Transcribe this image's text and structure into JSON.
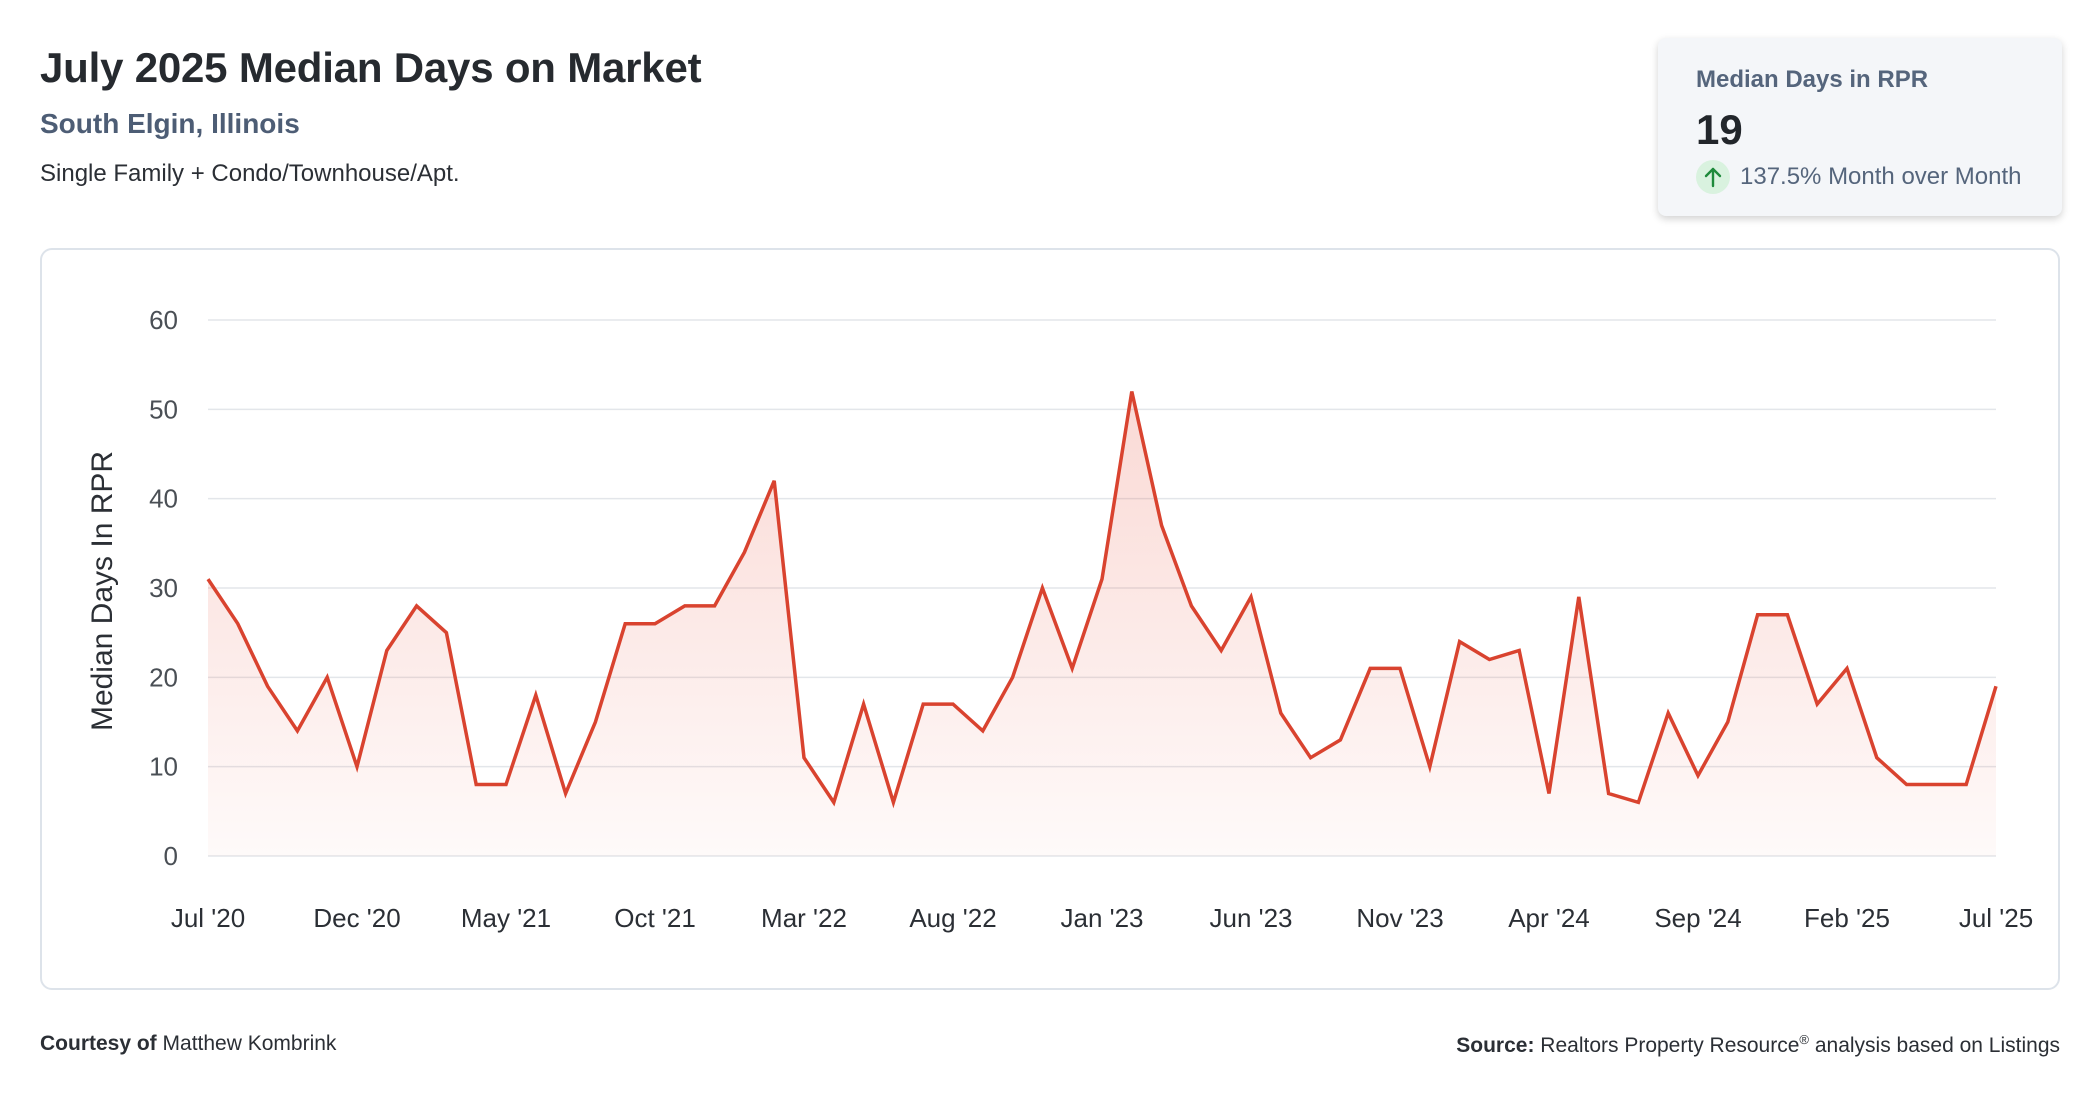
{
  "header": {
    "title": "July 2025 Median Days on Market",
    "location": "South Elgin, Illinois",
    "property_type": "Single Family + Condo/Townhouse/Apt."
  },
  "stat_card": {
    "label": "Median Days in RPR",
    "value": "19",
    "change_text": "137.5% Month over Month",
    "change_direction": "up",
    "change_icon": "arrow-up-icon",
    "change_color": "#1f8a3c",
    "change_bg_color": "#d9f2df"
  },
  "footer": {
    "courtesy_label": "Courtesy of",
    "courtesy_name": "Matthew Kombrink",
    "source_label": "Source:",
    "source_name": "Realtors Property Resource",
    "source_mark": "®",
    "source_rest": "analysis based on Listings"
  },
  "colors": {
    "line": "#d9432f",
    "fill": "#e8533f",
    "grid": "#e3e6ea",
    "tick_text": "#4a4f55"
  },
  "chart_data": {
    "type": "area",
    "ylabel": "Median Days In RPR",
    "xlabel": "",
    "ylim": [
      0,
      60
    ],
    "yticks": [
      0,
      10,
      20,
      30,
      40,
      50,
      60
    ],
    "grid": true,
    "x_tick_labels": [
      "Jul '20",
      "Dec '20",
      "May '21",
      "Oct '21",
      "Mar '22",
      "Aug '22",
      "Jan '23",
      "Jun '23",
      "Nov '23",
      "Apr '24",
      "Sep '24",
      "Feb '25",
      "Jul '25"
    ],
    "x": [
      "Jul '20",
      "Aug '20",
      "Sep '20",
      "Oct '20",
      "Nov '20",
      "Dec '20",
      "Jan '21",
      "Feb '21",
      "Mar '21",
      "Apr '21",
      "May '21",
      "Jun '21",
      "Jul '21",
      "Aug '21",
      "Sep '21",
      "Oct '21",
      "Nov '21",
      "Dec '21",
      "Jan '22",
      "Feb '22",
      "Mar '22",
      "Apr '22",
      "May '22",
      "Jun '22",
      "Jul '22",
      "Aug '22",
      "Sep '22",
      "Oct '22",
      "Nov '22",
      "Dec '22",
      "Jan '23",
      "Feb '23",
      "Mar '23",
      "Apr '23",
      "May '23",
      "Jun '23",
      "Jul '23",
      "Aug '23",
      "Sep '23",
      "Oct '23",
      "Nov '23",
      "Dec '23",
      "Jan '24",
      "Feb '24",
      "Mar '24",
      "Apr '24",
      "May '24",
      "Jun '24",
      "Jul '24",
      "Aug '24",
      "Sep '24",
      "Oct '24",
      "Nov '24",
      "Dec '24",
      "Jan '25",
      "Feb '25",
      "Mar '25",
      "Apr '25",
      "May '25",
      "Jun '25",
      "Jul '25"
    ],
    "series": [
      {
        "name": "",
        "values": [
          31,
          26,
          19,
          14,
          20,
          10,
          23,
          28,
          25,
          8,
          8,
          18,
          7,
          15,
          26,
          26,
          28,
          28,
          34,
          42,
          11,
          6,
          17,
          6,
          17,
          17,
          14,
          20,
          30,
          21,
          31,
          52,
          37,
          28,
          23,
          29,
          16,
          11,
          13,
          21,
          21,
          10,
          24,
          22,
          23,
          7,
          29,
          7,
          6,
          16,
          9,
          15,
          27,
          27,
          17,
          21,
          11,
          8,
          8,
          8,
          19
        ]
      }
    ]
  }
}
